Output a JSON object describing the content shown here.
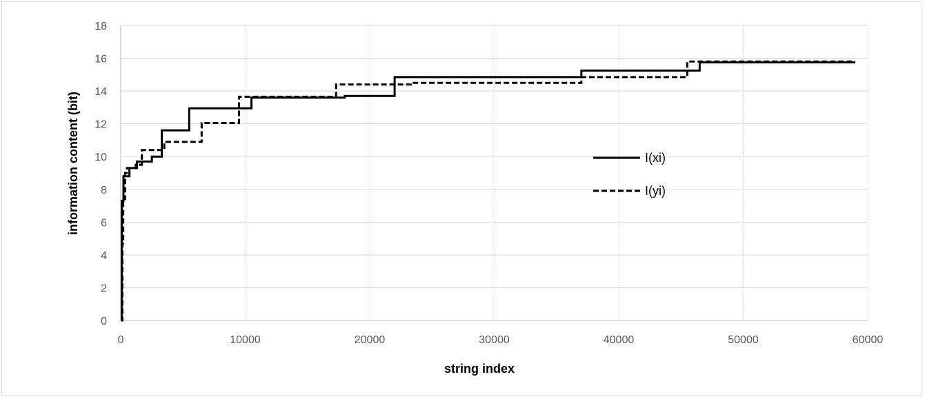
{
  "chart_data": {
    "type": "line",
    "title": "",
    "xlabel": "string index",
    "ylabel": "information content (bit)",
    "xlim": [
      0,
      60000
    ],
    "ylim": [
      0,
      18
    ],
    "xticks": [
      0,
      10000,
      20000,
      30000,
      40000,
      50000,
      60000
    ],
    "yticks": [
      0,
      2,
      4,
      6,
      8,
      10,
      12,
      14,
      16,
      18
    ],
    "grid": {
      "x": "dotted-vertical",
      "y": "solid-horizontal"
    },
    "legend_position": "right",
    "colors": {
      "line": "#000000",
      "grid": "#d9d9d9",
      "axis": "#bfbfbf"
    },
    "series": [
      {
        "name": "I(xi)",
        "style": "solid",
        "points": [
          [
            0,
            0
          ],
          [
            80,
            0
          ],
          [
            80,
            7.3
          ],
          [
            220,
            7.3
          ],
          [
            220,
            8.8
          ],
          [
            700,
            8.8
          ],
          [
            700,
            9.3
          ],
          [
            1300,
            9.3
          ],
          [
            1300,
            9.7
          ],
          [
            2500,
            9.7
          ],
          [
            2500,
            10.0
          ],
          [
            3300,
            10.0
          ],
          [
            3300,
            11.6
          ],
          [
            5500,
            11.6
          ],
          [
            5500,
            12.95
          ],
          [
            10500,
            12.95
          ],
          [
            10500,
            13.6
          ],
          [
            18000,
            13.6
          ],
          [
            18000,
            13.7
          ],
          [
            22000,
            13.7
          ],
          [
            22000,
            14.85
          ],
          [
            37000,
            14.85
          ],
          [
            37000,
            15.25
          ],
          [
            46500,
            15.25
          ],
          [
            46500,
            15.75
          ],
          [
            59000,
            15.75
          ]
        ]
      },
      {
        "name": "I(yi)",
        "style": "dashed",
        "points": [
          [
            0,
            0
          ],
          [
            130,
            0
          ],
          [
            130,
            4.7
          ],
          [
            200,
            4.7
          ],
          [
            200,
            7.4
          ],
          [
            350,
            7.4
          ],
          [
            350,
            9.0
          ],
          [
            500,
            9.0
          ],
          [
            500,
            9.3
          ],
          [
            1200,
            9.3
          ],
          [
            1200,
            9.5
          ],
          [
            1700,
            9.5
          ],
          [
            1700,
            10.4
          ],
          [
            3500,
            10.4
          ],
          [
            3500,
            10.9
          ],
          [
            6500,
            10.9
          ],
          [
            6500,
            12.05
          ],
          [
            9500,
            12.05
          ],
          [
            9500,
            13.65
          ],
          [
            17300,
            13.65
          ],
          [
            17300,
            14.4
          ],
          [
            23300,
            14.4
          ],
          [
            23300,
            14.5
          ],
          [
            37000,
            14.5
          ],
          [
            37000,
            14.85
          ],
          [
            45500,
            14.85
          ],
          [
            45500,
            15.8
          ],
          [
            59000,
            15.8
          ]
        ]
      }
    ]
  }
}
